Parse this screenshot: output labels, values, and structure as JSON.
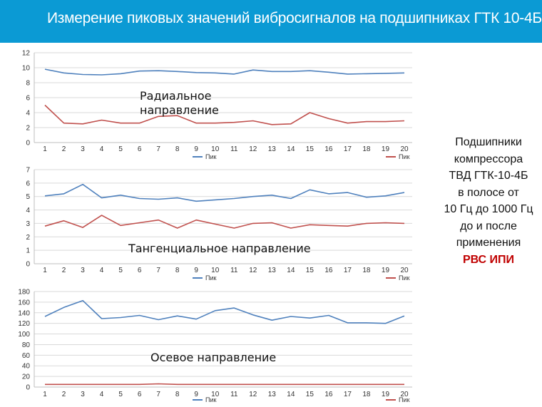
{
  "header": {
    "title": "Измерение пиковых значений вибросигналов на подшипниках ГТК 10-4Б"
  },
  "side_text": {
    "lines": [
      "Подшипники",
      "компрессора",
      "ТВД  ГТК-10-4Б",
      "в полосе от",
      "10 Гц до 1000 Гц",
      "до и после",
      "применения"
    ],
    "highlight": "РВС ИПИ"
  },
  "colors": {
    "header": "#0b9ad4",
    "series_before": "#4f81bd",
    "series_after": "#c0504d",
    "highlight": "#c00000"
  },
  "chart_data": [
    {
      "type": "line",
      "annotation": "Радиальное\nнаправление",
      "x": [
        1,
        2,
        3,
        4,
        5,
        6,
        7,
        8,
        9,
        10,
        11,
        12,
        13,
        14,
        15,
        16,
        17,
        18,
        19,
        20
      ],
      "ylim": [
        0,
        12
      ],
      "yticks": [
        0,
        2,
        4,
        6,
        8,
        10,
        12
      ],
      "grid": true,
      "series": [
        {
          "name": "Пик",
          "color": "#4f81bd",
          "values": [
            9.8,
            9.3,
            9.1,
            9.05,
            9.2,
            9.55,
            9.6,
            9.5,
            9.35,
            9.3,
            9.15,
            9.7,
            9.5,
            9.5,
            9.6,
            9.4,
            9.15,
            9.2,
            9.25,
            9.3
          ]
        },
        {
          "name": "Пик",
          "color": "#c0504d",
          "values": [
            5.0,
            2.6,
            2.5,
            3.0,
            2.6,
            2.6,
            3.5,
            3.6,
            2.6,
            2.6,
            2.7,
            2.9,
            2.4,
            2.5,
            4.0,
            3.2,
            2.6,
            2.8,
            2.8,
            2.9
          ]
        }
      ]
    },
    {
      "type": "line",
      "annotation": "Тангенциальное направление",
      "x": [
        1,
        2,
        3,
        4,
        5,
        6,
        7,
        8,
        9,
        10,
        11,
        12,
        13,
        14,
        15,
        16,
        17,
        18,
        19,
        20
      ],
      "ylim": [
        0,
        7
      ],
      "yticks": [
        0,
        1,
        2,
        3,
        4,
        5,
        6,
        7
      ],
      "grid": true,
      "series": [
        {
          "name": "Пик",
          "color": "#4f81bd",
          "values": [
            5.05,
            5.2,
            5.9,
            4.9,
            5.1,
            4.85,
            4.8,
            4.9,
            4.65,
            4.75,
            4.85,
            5.0,
            5.1,
            4.85,
            5.5,
            5.2,
            5.3,
            4.95,
            5.05,
            5.3
          ]
        },
        {
          "name": "Пик",
          "color": "#c0504d",
          "values": [
            2.8,
            3.2,
            2.7,
            3.6,
            2.85,
            3.05,
            3.25,
            2.65,
            3.25,
            2.95,
            2.65,
            3.0,
            3.05,
            2.65,
            2.9,
            2.85,
            2.8,
            3.0,
            3.05,
            3.0
          ]
        }
      ]
    },
    {
      "type": "line",
      "annotation": "Осевое направление",
      "x": [
        1,
        2,
        3,
        4,
        5,
        6,
        7,
        8,
        9,
        10,
        11,
        12,
        13,
        14,
        15,
        16,
        17,
        18,
        19,
        20
      ],
      "ylim": [
        0,
        180
      ],
      "yticks": [
        0,
        20,
        40,
        60,
        80,
        100,
        120,
        140,
        160,
        180
      ],
      "grid": true,
      "series": [
        {
          "name": "Пик",
          "color": "#4f81bd",
          "values": [
            133,
            150,
            163,
            129,
            131,
            135,
            127,
            134,
            128,
            144,
            149,
            136,
            126,
            133,
            130,
            135,
            121,
            121,
            120,
            134
          ]
        },
        {
          "name": "Пик",
          "color": "#c0504d",
          "values": [
            5,
            5,
            5,
            5,
            5,
            5,
            6,
            5,
            5,
            5,
            5,
            5,
            5,
            5,
            5,
            5,
            5,
            5,
            5,
            5
          ]
        }
      ]
    }
  ]
}
